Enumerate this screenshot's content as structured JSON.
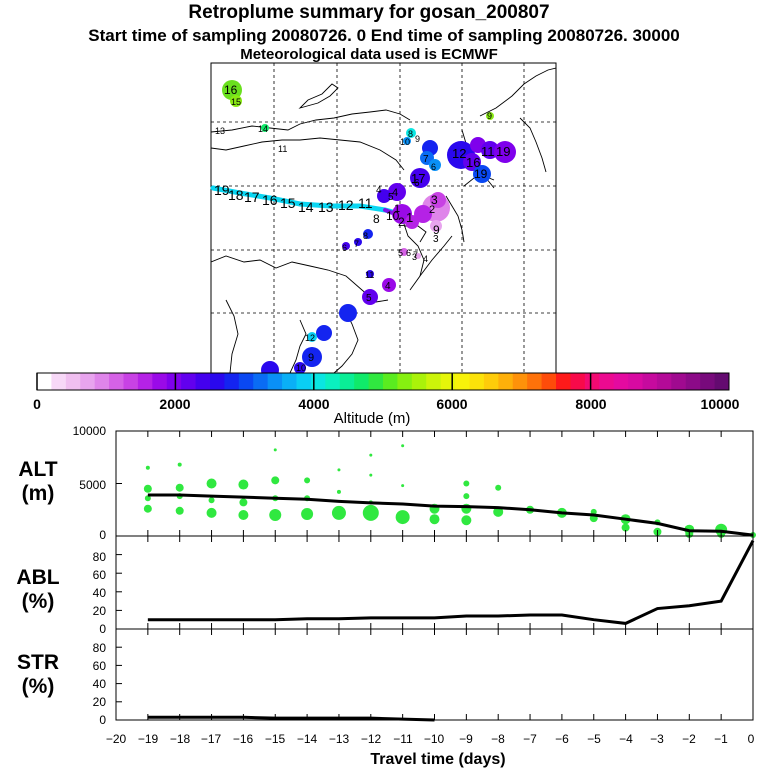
{
  "header": {
    "title": "Retroplume summary for gosan_200807",
    "subtitle": "Start time of sampling 20080726.    0     End time of sampling 20080726. 30000",
    "met": "Meteorological data used is ECMWF"
  },
  "colorbar": {
    "label": "Altitude  (m)",
    "ticks": [
      "0",
      "2000",
      "4000",
      "6000",
      "8000",
      "10000"
    ],
    "colors": [
      "#ffffff",
      "#f7d8f7",
      "#f0bff0",
      "#e8a4ee",
      "#df85ea",
      "#d562e6",
      "#c842e4",
      "#b522e6",
      "#9a0ae8",
      "#7f00ec",
      "#6200ee",
      "#4400ee",
      "#2a08ee",
      "#1424f0",
      "#0a48f2",
      "#0a6cf4",
      "#0a90f6",
      "#0ab0f6",
      "#0acef4",
      "#0ae6e2",
      "#0af0c0",
      "#0aee96",
      "#10ea6a",
      "#30e840",
      "#5aec20",
      "#86f010",
      "#aaf20a",
      "#ccf40a",
      "#e6f60a",
      "#f8f20a",
      "#fce20a",
      "#fecc0a",
      "#feb00a",
      "#fe920a",
      "#fe720a",
      "#fe4c0a",
      "#fe1a1a",
      "#f80a4a",
      "#f20a72",
      "#ec0a90",
      "#e40aa0",
      "#d80aa2",
      "#c60a9e",
      "#b40a98",
      "#a00a90",
      "#8c0a88",
      "#780a7c",
      "#640a70"
    ]
  },
  "map": {
    "trajectory_labels": [
      {
        "t": "16",
        "c": "#6ae01e"
      },
      {
        "t": "15",
        "c": "#6ae01e"
      },
      {
        "t": "13",
        "c": "#000000"
      },
      {
        "t": "14",
        "c": "#000000"
      },
      {
        "t": "11",
        "c": "#000000"
      },
      {
        "t": "9",
        "c": "#000000"
      },
      {
        "t": "8",
        "c": "#000000"
      },
      {
        "t": "10",
        "c": "#000000"
      },
      {
        "t": "9",
        "c": "#000000"
      },
      {
        "t": "7",
        "c": "#000000"
      },
      {
        "t": "6",
        "c": "#000000"
      },
      {
        "t": "12",
        "c": "#000000"
      },
      {
        "t": "16",
        "c": "#000000"
      },
      {
        "t": "11",
        "c": "#000000"
      },
      {
        "t": "19",
        "c": "#000000"
      },
      {
        "t": "17",
        "c": "#000000"
      },
      {
        "t": "19",
        "c": "#000000"
      },
      {
        "t": "4",
        "c": "#000000"
      },
      {
        "t": "3",
        "c": "#000000"
      },
      {
        "t": "2",
        "c": "#000000"
      },
      {
        "t": "1",
        "c": "#000000"
      },
      {
        "t": "9",
        "c": "#000000"
      },
      {
        "t": "3",
        "c": "#000000"
      },
      {
        "t": "19",
        "c": "#000000"
      },
      {
        "t": "18",
        "c": "#000000"
      },
      {
        "t": "17",
        "c": "#000000"
      },
      {
        "t": "16",
        "c": "#000000"
      },
      {
        "t": "15",
        "c": "#000000"
      },
      {
        "t": "14",
        "c": "#000000"
      },
      {
        "t": "13",
        "c": "#000000"
      },
      {
        "t": "12",
        "c": "#000000"
      },
      {
        "t": "11",
        "c": "#000000"
      },
      {
        "t": "8",
        "c": "#000000"
      },
      {
        "t": "10",
        "c": "#000000"
      },
      {
        "t": "2",
        "c": "#000000"
      },
      {
        "t": "1",
        "c": "#000000"
      },
      {
        "t": "6",
        "c": "#000000"
      },
      {
        "t": "5",
        "c": "#000000"
      },
      {
        "t": "4",
        "c": "#000000"
      },
      {
        "t": "8",
        "c": "#000000"
      },
      {
        "t": "7",
        "c": "#000000"
      },
      {
        "t": "6",
        "c": "#000000"
      },
      {
        "t": "5",
        "c": "#000000"
      },
      {
        "t": "6",
        "c": "#000000"
      },
      {
        "t": "7",
        "c": "#000000"
      },
      {
        "t": "3",
        "c": "#000000"
      },
      {
        "t": "4",
        "c": "#000000"
      },
      {
        "t": "11",
        "c": "#000000"
      },
      {
        "t": "4",
        "c": "#000000"
      },
      {
        "t": "5",
        "c": "#000000"
      },
      {
        "t": "12",
        "c": "#000000"
      },
      {
        "t": "9",
        "c": "#000000"
      },
      {
        "t": "10",
        "c": "#000000"
      }
    ]
  },
  "chart_data": [
    {
      "type": "scatter+line",
      "panel": "ALT",
      "ylabel": "ALT\n(m)",
      "ylabel_lines": [
        "ALT",
        "(m)"
      ],
      "ylim": [
        0,
        10000
      ],
      "ytick_labels": [
        "0",
        "5000",
        "10000"
      ],
      "y_ticks": [
        0,
        5000,
        10000
      ],
      "xlim": [
        -20,
        0
      ],
      "line": {
        "x": [
          -19,
          -18,
          -17,
          -16,
          -15,
          -14,
          -13,
          -12,
          -11,
          -10,
          -9,
          -8,
          -7,
          -6,
          -5,
          -4,
          -3,
          -2,
          -1,
          0
        ],
        "y": [
          3900,
          3900,
          3800,
          3700,
          3600,
          3500,
          3300,
          3150,
          3050,
          2850,
          2800,
          2700,
          2500,
          2200,
          2000,
          1600,
          1200,
          500,
          450,
          80
        ]
      },
      "clusters": [
        {
          "x": -19,
          "y": 4500,
          "r": 4
        },
        {
          "x": -19,
          "y": 3600,
          "r": 3
        },
        {
          "x": -19,
          "y": 2600,
          "r": 4
        },
        {
          "x": -19,
          "y": 6500,
          "r": 2
        },
        {
          "x": -18,
          "y": 6800,
          "r": 2
        },
        {
          "x": -18,
          "y": 4600,
          "r": 4
        },
        {
          "x": -18,
          "y": 3800,
          "r": 3
        },
        {
          "x": -18,
          "y": 2400,
          "r": 4
        },
        {
          "x": -17,
          "y": 5000,
          "r": 5
        },
        {
          "x": -17,
          "y": 3400,
          "r": 3
        },
        {
          "x": -17,
          "y": 2200,
          "r": 5
        },
        {
          "x": -16,
          "y": 4900,
          "r": 5
        },
        {
          "x": -16,
          "y": 3200,
          "r": 4
        },
        {
          "x": -16,
          "y": 2000,
          "r": 5
        },
        {
          "x": -15,
          "y": 8200,
          "r": 1.5
        },
        {
          "x": -15,
          "y": 5300,
          "r": 4
        },
        {
          "x": -15,
          "y": 3600,
          "r": 3
        },
        {
          "x": -15,
          "y": 2000,
          "r": 6
        },
        {
          "x": -14,
          "y": 5300,
          "r": 3
        },
        {
          "x": -14,
          "y": 3600,
          "r": 3
        },
        {
          "x": -14,
          "y": 2100,
          "r": 6
        },
        {
          "x": -13,
          "y": 6300,
          "r": 1.5
        },
        {
          "x": -13,
          "y": 4200,
          "r": 2
        },
        {
          "x": -13,
          "y": 2200,
          "r": 7
        },
        {
          "x": -12,
          "y": 7700,
          "r": 1.5
        },
        {
          "x": -12,
          "y": 5800,
          "r": 1.5
        },
        {
          "x": -12,
          "y": 3200,
          "r": 2
        },
        {
          "x": -12,
          "y": 2200,
          "r": 8
        },
        {
          "x": -11,
          "y": 8600,
          "r": 1.5
        },
        {
          "x": -11,
          "y": 4800,
          "r": 1.5
        },
        {
          "x": -11,
          "y": 1800,
          "r": 7
        },
        {
          "x": -10,
          "y": 2600,
          "r": 5
        },
        {
          "x": -10,
          "y": 1600,
          "r": 5
        },
        {
          "x": -9,
          "y": 5000,
          "r": 3
        },
        {
          "x": -9,
          "y": 3800,
          "r": 3
        },
        {
          "x": -9,
          "y": 2600,
          "r": 5
        },
        {
          "x": -9,
          "y": 1500,
          "r": 5
        },
        {
          "x": -8,
          "y": 4600,
          "r": 3
        },
        {
          "x": -8,
          "y": 2300,
          "r": 5
        },
        {
          "x": -7,
          "y": 2500,
          "r": 4
        },
        {
          "x": -6,
          "y": 2200,
          "r": 5
        },
        {
          "x": -5,
          "y": 2300,
          "r": 3
        },
        {
          "x": -5,
          "y": 1700,
          "r": 4
        },
        {
          "x": -4,
          "y": 1600,
          "r": 5
        },
        {
          "x": -4,
          "y": 800,
          "r": 4
        },
        {
          "x": -3,
          "y": 1300,
          "r": 3
        },
        {
          "x": -3,
          "y": 400,
          "r": 4
        },
        {
          "x": -2,
          "y": 600,
          "r": 5
        },
        {
          "x": -2,
          "y": 200,
          "r": 4
        },
        {
          "x": -1,
          "y": 600,
          "r": 6
        },
        {
          "x": -1,
          "y": 200,
          "r": 4
        },
        {
          "x": 0,
          "y": 100,
          "r": 3
        }
      ]
    },
    {
      "type": "line",
      "panel": "ABL",
      "ylabel": "ABL\n(%)",
      "ylabel_lines": [
        "ABL",
        "(%)"
      ],
      "ylim": [
        0,
        100
      ],
      "ytick_labels": [
        "0",
        "20",
        "40",
        "60",
        "80"
      ],
      "y_ticks": [
        0,
        20,
        40,
        60,
        80
      ],
      "xlim": [
        -20,
        0
      ],
      "x": [
        -19,
        -18,
        -17,
        -16,
        -15,
        -14,
        -13,
        -12,
        -11,
        -10,
        -9,
        -8,
        -7,
        -6,
        -5,
        -4,
        -3,
        -2,
        -1,
        0
      ],
      "y": [
        10,
        10,
        10,
        10,
        10,
        11,
        11,
        12,
        12,
        12,
        14,
        14,
        15,
        15,
        10,
        6,
        22,
        25,
        30,
        95
      ]
    },
    {
      "type": "line",
      "panel": "STR",
      "ylabel": "STR\n(%)",
      "ylabel_lines": [
        "STR",
        "(%)"
      ],
      "ylim": [
        0,
        100
      ],
      "ytick_labels": [
        "0",
        "20",
        "40",
        "60",
        "80"
      ],
      "y_ticks": [
        0,
        20,
        40,
        60,
        80
      ],
      "xlim": [
        -20,
        0
      ],
      "xlabel": "Travel time (days)",
      "xtick_labels": [
        "−20",
        "−19",
        "−18",
        "−17",
        "−16",
        "−15",
        "−14",
        "−13",
        "−12",
        "−11",
        "−10",
        "−9",
        "−8",
        "−7",
        "−6",
        "−5",
        "−4",
        "−3",
        "−2",
        "−1",
        "0"
      ],
      "x": [
        -19,
        -18,
        -17,
        -16,
        -15,
        -14,
        -13,
        -12,
        -11,
        -10
      ],
      "y": [
        3,
        3,
        3,
        3,
        2,
        2,
        2,
        2,
        1,
        0
      ]
    }
  ]
}
